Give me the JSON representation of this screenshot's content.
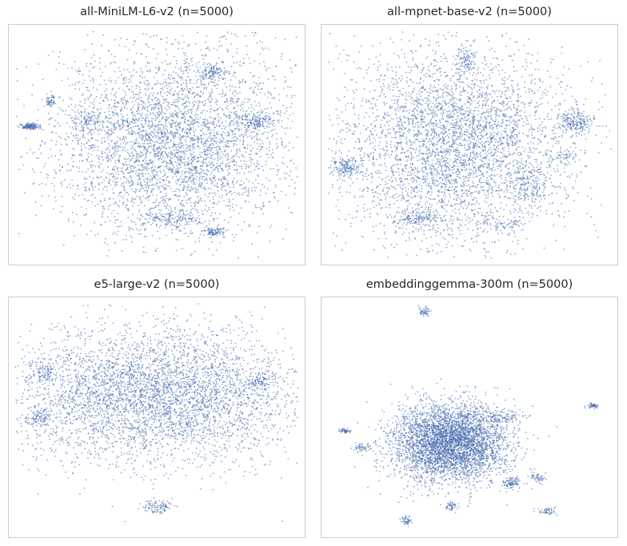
{
  "figure": {
    "point_color": "#4c72b0",
    "frame_color": "#cccccc",
    "background": "#ffffff",
    "grid": false,
    "axes_ticks": false
  },
  "chart_data": [
    {
      "type": "scatter",
      "title": "all-MiniLM-L6-v2 (n=5000)",
      "n_points": 5000,
      "xlabel": "",
      "ylabel": "",
      "xlim": [
        -100,
        100
      ],
      "ylim": [
        -100,
        100
      ],
      "description_shape": "large roughly round central cloud with small satellite clusters on the left",
      "blobs": [
        {
          "cx": 12,
          "cy": 3,
          "sx": 42,
          "sy": 40,
          "w": 0.84
        },
        {
          "cx": -89,
          "cy": 16,
          "sx": 3,
          "sy": 1.5,
          "w": 0.03
        },
        {
          "cx": -76,
          "cy": 38,
          "sx": 2,
          "sy": 3,
          "w": 0.01
        },
        {
          "cx": -50,
          "cy": 20,
          "sx": 6,
          "sy": 5,
          "w": 0.02
        },
        {
          "cx": 70,
          "cy": 20,
          "sx": 6,
          "sy": 4,
          "w": 0.03
        },
        {
          "cx": 40,
          "cy": 64,
          "sx": 5,
          "sy": 3,
          "w": 0.02
        },
        {
          "cx": 8,
          "cy": -66,
          "sx": 12,
          "sy": 4,
          "w": 0.03
        },
        {
          "cx": 40,
          "cy": -77,
          "sx": 4,
          "sy": 2,
          "w": 0.02
        }
      ]
    },
    {
      "type": "scatter",
      "title": "all-mpnet-base-v2 (n=5000)",
      "n_points": 5000,
      "xlabel": "",
      "ylabel": "",
      "xlim": [
        -100,
        100
      ],
      "ylim": [
        -100,
        100
      ],
      "description_shape": "broad cloud with peripheral clusters, separated cluster on the right edge",
      "blobs": [
        {
          "cx": -12,
          "cy": 0,
          "sx": 40,
          "sy": 42,
          "w": 0.83
        },
        {
          "cx": 75,
          "cy": 20,
          "sx": 6,
          "sy": 5,
          "w": 0.04
        },
        {
          "cx": 67,
          "cy": -11,
          "sx": 4,
          "sy": 3,
          "w": 0.01
        },
        {
          "cx": -87,
          "cy": -20,
          "sx": 5,
          "sy": 4,
          "w": 0.03
        },
        {
          "cx": -37,
          "cy": -65,
          "sx": 9,
          "sy": 4,
          "w": 0.03
        },
        {
          "cx": 42,
          "cy": -36,
          "sx": 6,
          "sy": 9,
          "w": 0.03
        },
        {
          "cx": -2,
          "cy": 73,
          "sx": 3,
          "sy": 6,
          "w": 0.02
        },
        {
          "cx": 27,
          "cy": -72,
          "sx": 8,
          "sy": 4,
          "w": 0.01
        }
      ]
    },
    {
      "type": "scatter",
      "title": "e5-large-v2 (n=5000)",
      "n_points": 5000,
      "xlabel": "",
      "ylabel": "",
      "xlim": [
        -100,
        100
      ],
      "ylim": [
        -100,
        100
      ],
      "description_shape": "wide elliptical cloud covering most of the panel with a small cluster below",
      "blobs": [
        {
          "cx": -2,
          "cy": 20,
          "sx": 52,
          "sy": 30,
          "w": 0.92
        },
        {
          "cx": -83,
          "cy": 0,
          "sx": 4,
          "sy": 5,
          "w": 0.02
        },
        {
          "cx": -80,
          "cy": 40,
          "sx": 4,
          "sy": 6,
          "w": 0.02
        },
        {
          "cx": 0,
          "cy": -79,
          "sx": 5,
          "sy": 3,
          "w": 0.02
        },
        {
          "cx": 72,
          "cy": 32,
          "sx": 5,
          "sy": 4,
          "w": 0.02
        }
      ]
    },
    {
      "type": "scatter",
      "title": "embeddinggemma-300m (n=5000)",
      "n_points": 5000,
      "xlabel": "",
      "ylabel": "",
      "xlim": [
        -100,
        100
      ],
      "ylim": [
        -100,
        100
      ],
      "description_shape": "dense compact core with many small, widely separated clusters",
      "blobs": [
        {
          "cx": -14,
          "cy": -22,
          "sx": 20,
          "sy": 17,
          "w": 0.86
        },
        {
          "cx": -32,
          "cy": 93,
          "sx": 2,
          "sy": 2,
          "w": 0.01
        },
        {
          "cx": 87,
          "cy": 10,
          "sx": 2,
          "sy": 1,
          "w": 0.01
        },
        {
          "cx": -88,
          "cy": -12,
          "sx": 2,
          "sy": 1,
          "w": 0.01
        },
        {
          "cx": -76,
          "cy": -27,
          "sx": 4,
          "sy": 2,
          "w": 0.01
        },
        {
          "cx": 21,
          "cy": 0,
          "sx": 8,
          "sy": 3,
          "w": 0.02
        },
        {
          "cx": 48,
          "cy": -53,
          "sx": 3,
          "sy": 2,
          "w": 0.01
        },
        {
          "cx": 30,
          "cy": -58,
          "sx": 4,
          "sy": 3,
          "w": 0.02
        },
        {
          "cx": 55,
          "cy": -83,
          "sx": 4,
          "sy": 2,
          "w": 0.01
        },
        {
          "cx": -45,
          "cy": -91,
          "sx": 2,
          "sy": 2,
          "w": 0.01
        },
        {
          "cx": -13,
          "cy": -78,
          "sx": 2,
          "sy": 2,
          "w": 0.01
        }
      ]
    }
  ]
}
